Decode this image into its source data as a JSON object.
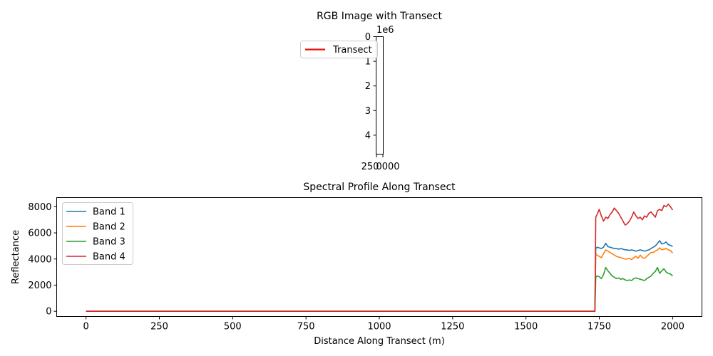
{
  "chart_data": [
    {
      "type": "line",
      "title": "RGB Image with Transect",
      "y_offset_label": "1e6",
      "y_ticks": [
        0,
        1,
        2,
        3,
        4
      ],
      "x_tick_labels": [
        "250",
        "0000"
      ],
      "legend": {
        "position": "upper-left",
        "entries": [
          {
            "name": "Transect",
            "color": "#e8150c"
          }
        ]
      }
    },
    {
      "type": "line",
      "title": "Spectral Profile Along Transect",
      "xlabel": "Distance Along Transect (m)",
      "ylabel": "Reflectance",
      "xlim": [
        -100,
        2100
      ],
      "ylim": [
        -400,
        8700
      ],
      "x_ticks": [
        0,
        250,
        500,
        750,
        1000,
        1250,
        1500,
        1750,
        2000
      ],
      "y_ticks": [
        0,
        2000,
        4000,
        6000,
        8000
      ],
      "legend": "upper-left",
      "step_x": 1735,
      "end_x": 2000,
      "series": [
        {
          "name": "Band 1",
          "color": "#1f77b4",
          "baseline": 0,
          "profile": [
            4800,
            4900,
            4850,
            4800,
            4900,
            5200,
            4950,
            4900,
            4850,
            4800,
            4800,
            4750,
            4800,
            4750,
            4700,
            4700,
            4650,
            4700,
            4650,
            4600,
            4650,
            4700,
            4650,
            4600,
            4650,
            4700,
            4800,
            4900,
            5000,
            5200,
            5400,
            5150,
            5200,
            5300,
            5100,
            5050,
            4950
          ]
        },
        {
          "name": "Band 2",
          "color": "#ff7f0e",
          "baseline": 0,
          "profile": [
            4400,
            4300,
            4200,
            4100,
            4400,
            4700,
            4600,
            4500,
            4400,
            4300,
            4200,
            4150,
            4100,
            4050,
            4000,
            4000,
            4050,
            3950,
            4100,
            4200,
            4050,
            4300,
            4100,
            4050,
            4200,
            4350,
            4500,
            4500,
            4600,
            4700,
            4850,
            4700,
            4750,
            4800,
            4700,
            4650,
            4450
          ]
        },
        {
          "name": "Band 3",
          "color": "#2ca02c",
          "baseline": 0,
          "profile": [
            2600,
            2700,
            2650,
            2500,
            2800,
            3350,
            3100,
            2900,
            2700,
            2600,
            2500,
            2550,
            2450,
            2500,
            2400,
            2350,
            2400,
            2350,
            2500,
            2550,
            2500,
            2450,
            2400,
            2350,
            2500,
            2600,
            2700,
            2900,
            3050,
            3350,
            2900,
            3100,
            3250,
            3000,
            2900,
            2850,
            2700
          ]
        },
        {
          "name": "Band 4",
          "color": "#d62728",
          "baseline": 0,
          "profile": [
            7200,
            7400,
            7800,
            7300,
            6900,
            7200,
            7100,
            7400,
            7600,
            7900,
            7700,
            7500,
            7200,
            6900,
            6600,
            6700,
            6900,
            7200,
            7600,
            7300,
            7100,
            7200,
            7000,
            7300,
            7200,
            7500,
            7600,
            7400,
            7200,
            7700,
            7800,
            7700,
            8100,
            8000,
            8200,
            8000,
            7750
          ]
        }
      ]
    }
  ]
}
